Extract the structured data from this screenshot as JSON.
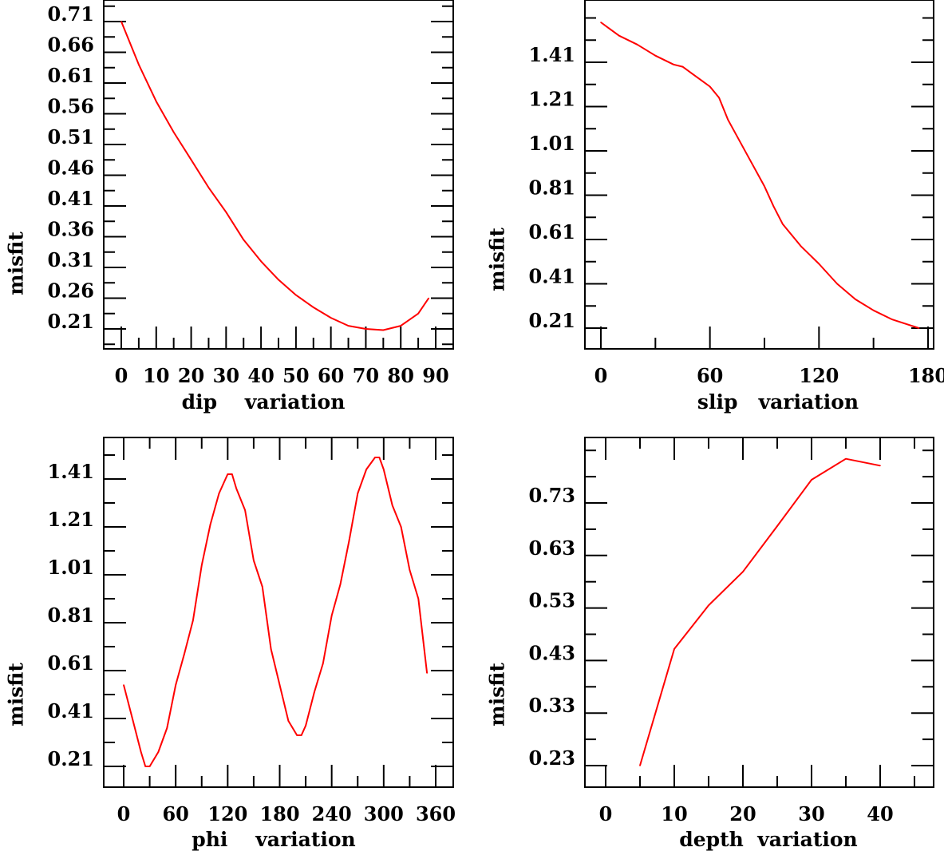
{
  "colors": {
    "line": "#ff0000",
    "axis": "#000000"
  },
  "chart_data": [
    {
      "type": "line",
      "xlabel": "dip    variation",
      "ylabel": "misfit",
      "xticks": [
        0,
        10,
        20,
        30,
        40,
        50,
        60,
        70,
        80,
        90
      ],
      "yticks": [
        0.71,
        0.66,
        0.61,
        0.56,
        0.51,
        0.46,
        0.41,
        0.36,
        0.31,
        0.26,
        0.21
      ],
      "x": [
        0,
        5,
        10,
        15,
        20,
        25,
        30,
        35,
        40,
        45,
        50,
        55,
        60,
        65,
        70,
        75,
        80,
        85,
        88
      ],
      "y": [
        0.71,
        0.64,
        0.58,
        0.53,
        0.485,
        0.44,
        0.4,
        0.355,
        0.32,
        0.29,
        0.265,
        0.245,
        0.228,
        0.215,
        0.21,
        0.208,
        0.215,
        0.235,
        0.26
      ]
    },
    {
      "type": "line",
      "xlabel": "slip   variation",
      "ylabel": "misfit",
      "xticks": [
        0,
        60,
        120,
        180
      ],
      "yticks": [
        1.41,
        1.21,
        1.01,
        0.81,
        0.61,
        0.41,
        0.21
      ],
      "x": [
        0,
        10,
        20,
        30,
        40,
        45,
        50,
        55,
        60,
        65,
        70,
        80,
        90,
        95,
        100,
        110,
        120,
        130,
        140,
        150,
        160,
        175
      ],
      "y": [
        1.59,
        1.53,
        1.49,
        1.44,
        1.4,
        1.39,
        1.36,
        1.33,
        1.3,
        1.25,
        1.15,
        1.0,
        0.85,
        0.76,
        0.68,
        0.58,
        0.5,
        0.41,
        0.34,
        0.29,
        0.25,
        0.21
      ]
    },
    {
      "type": "line",
      "xlabel": "phi    variation",
      "ylabel": "misfit",
      "xticks": [
        0,
        60,
        120,
        180,
        240,
        300,
        360
      ],
      "yticks": [
        1.41,
        1.21,
        1.01,
        0.81,
        0.61,
        0.41,
        0.21
      ],
      "x": [
        0,
        10,
        20,
        25,
        30,
        40,
        50,
        60,
        70,
        80,
        90,
        100,
        110,
        120,
        125,
        130,
        140,
        150,
        160,
        170,
        180,
        190,
        200,
        205,
        210,
        220,
        230,
        240,
        250,
        260,
        270,
        280,
        290,
        295,
        300,
        310,
        320,
        330,
        340,
        350
      ],
      "y": [
        0.55,
        0.41,
        0.27,
        0.21,
        0.21,
        0.27,
        0.37,
        0.55,
        0.68,
        0.82,
        1.05,
        1.22,
        1.35,
        1.43,
        1.43,
        1.37,
        1.28,
        1.07,
        0.96,
        0.7,
        0.55,
        0.4,
        0.34,
        0.34,
        0.38,
        0.52,
        0.64,
        0.84,
        0.97,
        1.15,
        1.35,
        1.45,
        1.5,
        1.5,
        1.45,
        1.3,
        1.21,
        1.03,
        0.91,
        0.6
      ]
    },
    {
      "type": "line",
      "xlabel": "depth  variation",
      "ylabel": "misfit",
      "xticks": [
        0,
        10,
        20,
        30,
        40
      ],
      "yticks": [
        0.73,
        0.63,
        0.53,
        0.43,
        0.33,
        0.23
      ],
      "x": [
        5,
        10,
        15,
        20,
        25,
        30,
        35,
        40
      ],
      "y": [
        0.23,
        0.452,
        0.535,
        0.599,
        0.686,
        0.774,
        0.814,
        0.801
      ]
    }
  ]
}
